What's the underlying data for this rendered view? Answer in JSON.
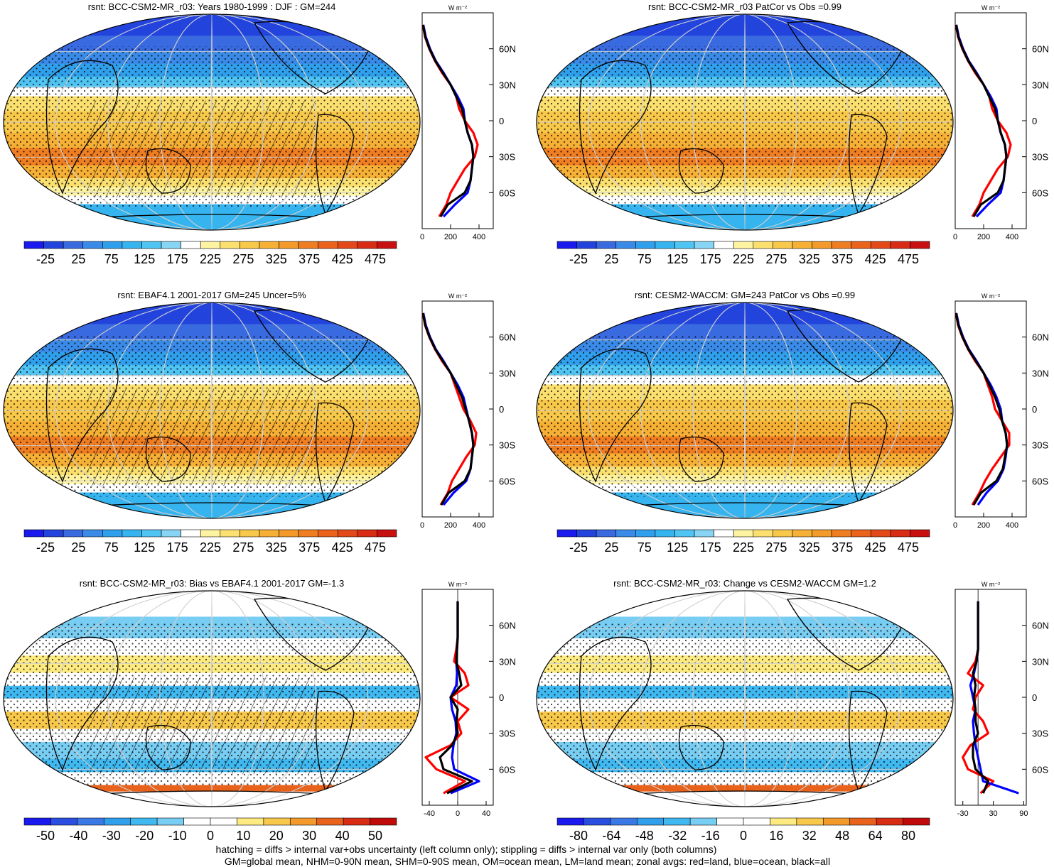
{
  "colors": {
    "absolute_scale": [
      "#1a1aef",
      "#2244dd",
      "#3a6ae0",
      "#3a8ae8",
      "#30a0ec",
      "#36b4ef",
      "#50c4f2",
      "#88d4f4",
      "#ffffff",
      "#fdf3a0",
      "#fbe070",
      "#f8c84a",
      "#f6b036",
      "#f39a2a",
      "#ef7e22",
      "#ea621c",
      "#e34818",
      "#d82c14",
      "#c81010"
    ],
    "diff_scale": [
      "#1a1aef",
      "#2a4ee0",
      "#3a78e6",
      "#30a0ec",
      "#40b8f0",
      "#78cdf3",
      "#ffffff",
      "#ffffff",
      "#fdea80",
      "#f8c84a",
      "#f39a2a",
      "#e8621c",
      "#d82c14",
      "#c00a0a"
    ],
    "land_line": "#ff0000",
    "ocean_line": "#0000ff",
    "all_line": "#000000",
    "grid": "#d0d0d0"
  },
  "chart_data": [
    {
      "type": "heatmap",
      "title": "rsnt: BCC-CSM2-MR_r03: Years 1980-1999 : DJF : GM=244",
      "colorbar": {
        "ticks": [
          "-25",
          "25",
          "75",
          "125",
          "175",
          "225",
          "275",
          "325",
          "375",
          "425",
          "475"
        ]
      },
      "zonal_mean": {
        "units": "W m⁻²",
        "xlim": [
          0,
          500
        ],
        "xticks": [
          "0",
          "200",
          "400"
        ],
        "lat_ticks": [
          "60N",
          "30N",
          "0",
          "30S",
          "60S"
        ],
        "lat": [
          -80,
          -70,
          -60,
          -50,
          -40,
          -30,
          -20,
          -10,
          0,
          10,
          20,
          30,
          40,
          50,
          60,
          70,
          80
        ],
        "land": [
          120,
          170,
          200,
          250,
          300,
          370,
          390,
          360,
          300,
          260,
          240,
          200,
          140,
          90,
          50,
          20,
          5
        ],
        "ocean": [
          150,
          230,
          320,
          340,
          350,
          360,
          350,
          320,
          300,
          290,
          250,
          200,
          150,
          95,
          55,
          25,
          8
        ],
        "all": [
          130,
          180,
          300,
          340,
          350,
          360,
          350,
          320,
          300,
          280,
          240,
          200,
          145,
          92,
          52,
          22,
          6
        ]
      }
    },
    {
      "type": "heatmap",
      "title": "rsnt: BCC-CSM2-MR_r03 PatCor vs Obs =0.99",
      "colorbar": {
        "ticks": [
          "-25",
          "25",
          "75",
          "125",
          "175",
          "225",
          "275",
          "325",
          "375",
          "425",
          "475"
        ]
      },
      "zonal_mean": {
        "units": "W m⁻²",
        "xlim": [
          0,
          500
        ],
        "xticks": [
          "0",
          "200",
          "400"
        ],
        "lat_ticks": [
          "60N",
          "30N",
          "0",
          "30S",
          "60S"
        ],
        "lat": [
          -80,
          -70,
          -60,
          -50,
          -40,
          -30,
          -20,
          -10,
          0,
          10,
          20,
          30,
          40,
          50,
          60,
          70,
          80
        ],
        "land": [
          120,
          170,
          200,
          250,
          300,
          370,
          390,
          360,
          300,
          260,
          240,
          200,
          140,
          90,
          50,
          20,
          5
        ],
        "ocean": [
          150,
          230,
          320,
          340,
          350,
          360,
          350,
          320,
          300,
          290,
          250,
          200,
          150,
          95,
          55,
          25,
          8
        ],
        "all": [
          130,
          180,
          300,
          340,
          350,
          360,
          350,
          320,
          300,
          280,
          240,
          200,
          145,
          92,
          52,
          22,
          6
        ]
      }
    },
    {
      "type": "heatmap",
      "title": "rsnt: EBAF4.1 2001-2017 GM=245 Uncer=5%",
      "colorbar": {
        "ticks": [
          "-25",
          "25",
          "75",
          "125",
          "175",
          "225",
          "275",
          "325",
          "375",
          "425",
          "475"
        ]
      },
      "zonal_mean": {
        "units": "W m⁻²",
        "xlim": [
          0,
          500
        ],
        "xticks": [
          "0",
          "200",
          "400"
        ],
        "lat_ticks": [
          "60N",
          "30N",
          "0",
          "30S",
          "60S"
        ],
        "lat": [
          -80,
          -70,
          -60,
          -50,
          -40,
          -30,
          -20,
          -10,
          0,
          10,
          20,
          30,
          40,
          50,
          60,
          70,
          80
        ],
        "land": [
          130,
          180,
          210,
          260,
          310,
          370,
          380,
          340,
          290,
          260,
          230,
          200,
          140,
          90,
          50,
          20,
          5
        ],
        "ocean": [
          150,
          220,
          310,
          340,
          350,
          360,
          350,
          330,
          310,
          290,
          250,
          200,
          150,
          95,
          55,
          25,
          8
        ],
        "all": [
          135,
          185,
          300,
          340,
          350,
          360,
          350,
          330,
          305,
          280,
          240,
          200,
          145,
          92,
          52,
          22,
          6
        ]
      }
    },
    {
      "type": "heatmap",
      "title": "rsnt: CESM2-WACCM: GM=243 PatCor vs Obs =0.99",
      "colorbar": {
        "ticks": [
          "-25",
          "25",
          "75",
          "125",
          "175",
          "225",
          "275",
          "325",
          "375",
          "425",
          "475"
        ]
      },
      "zonal_mean": {
        "units": "W m⁻²",
        "xlim": [
          0,
          500
        ],
        "xticks": [
          "0",
          "200",
          "400"
        ],
        "lat_ticks": [
          "60N",
          "30N",
          "0",
          "30S",
          "60S"
        ],
        "lat": [
          -80,
          -70,
          -60,
          -50,
          -40,
          -30,
          -20,
          -10,
          0,
          10,
          20,
          30,
          40,
          50,
          60,
          70,
          80
        ],
        "land": [
          120,
          170,
          210,
          260,
          320,
          380,
          380,
          330,
          280,
          260,
          230,
          200,
          140,
          90,
          50,
          20,
          5
        ],
        "ocean": [
          160,
          220,
          300,
          340,
          355,
          365,
          355,
          330,
          320,
          290,
          250,
          200,
          150,
          95,
          55,
          25,
          8
        ],
        "all": [
          130,
          180,
          290,
          335,
          350,
          365,
          355,
          330,
          310,
          280,
          240,
          200,
          145,
          92,
          52,
          22,
          6
        ]
      }
    },
    {
      "type": "heatmap",
      "title": "rsnt: BCC-CSM2-MR_r03: Bias vs EBAF4.1 2001-2017 GM=-1.3",
      "colorbar": {
        "ticks": [
          "-50",
          "-40",
          "-30",
          "-20",
          "-10",
          "0",
          "10",
          "20",
          "30",
          "40",
          "50"
        ]
      },
      "zonal_mean": {
        "units": "W m⁻²",
        "xlim": [
          -50,
          50
        ],
        "xticks": [
          "-40",
          "0",
          "40"
        ],
        "lat_ticks": [
          "60N",
          "30N",
          "0",
          "30S",
          "60S"
        ],
        "lat": [
          -80,
          -70,
          -60,
          -50,
          -40,
          -30,
          -20,
          -10,
          0,
          10,
          20,
          30,
          40,
          50,
          60,
          70,
          80
        ],
        "land": [
          -20,
          10,
          -30,
          -45,
          -10,
          5,
          0,
          15,
          -10,
          15,
          10,
          -5,
          -2,
          0,
          0,
          0,
          0
        ],
        "ocean": [
          -10,
          30,
          -5,
          -8,
          -6,
          -2,
          -3,
          -8,
          -10,
          -2,
          -1,
          -2,
          -1,
          0,
          0,
          0,
          0
        ],
        "all": [
          -15,
          20,
          -20,
          -25,
          -8,
          0,
          -2,
          0,
          -10,
          5,
          2,
          -2,
          -1,
          0,
          0,
          0,
          0
        ]
      }
    },
    {
      "type": "heatmap",
      "title": "rsnt: BCC-CSM2-MR_r03: Change vs CESM2-WACCM GM=1.2",
      "colorbar": {
        "ticks": [
          "-80",
          "-64",
          "-48",
          "-32",
          "-16",
          "0",
          "16",
          "32",
          "48",
          "64",
          "80"
        ]
      },
      "zonal_mean": {
        "units": "W m⁻²",
        "xlim": [
          -45,
          95
        ],
        "xticks": [
          "-30",
          "30",
          "90"
        ],
        "lat_ticks": [
          "60N",
          "30N",
          "0",
          "30S",
          "60S"
        ],
        "lat": [
          -80,
          -70,
          -60,
          -50,
          -40,
          -30,
          -20,
          -10,
          0,
          10,
          20,
          30,
          40,
          50,
          60,
          70,
          80
        ],
        "land": [
          5,
          30,
          -20,
          -30,
          -15,
          20,
          10,
          -10,
          -5,
          10,
          -20,
          -5,
          0,
          0,
          0,
          0,
          0
        ],
        "ocean": [
          80,
          10,
          5,
          0,
          -5,
          -8,
          -10,
          -5,
          -10,
          -15,
          -8,
          -3,
          0,
          0,
          0,
          0,
          0
        ],
        "all": [
          10,
          20,
          -5,
          -10,
          -10,
          0,
          -5,
          -5,
          -8,
          -5,
          -10,
          -3,
          0,
          0,
          0,
          0,
          0
        ]
      }
    }
  ],
  "footer": {
    "line1": "hatching = diffs > internal var+obs uncertainty (left column only); stippling = diffs > internal var only (both columns)",
    "line2": "GM=global mean, NHM=0-90N mean, SHM=0-90S mean, OM=ocean mean, LM=land mean; zonal avgs: red=land, blue=ocean, black=all"
  }
}
